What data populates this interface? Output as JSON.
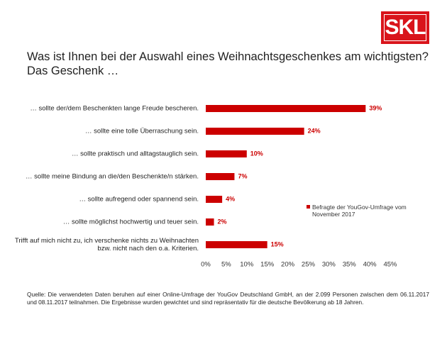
{
  "logo": "SKL",
  "chart_data": {
    "type": "hbar",
    "title": "Was ist Ihnen bei der Auswahl eines Weihnachtsgeschenkes am wichtigsten?",
    "subtitle": "Das Geschenk …",
    "categories": [
      "… sollte der/dem Beschenkten lange Freude bescheren.",
      "… sollte eine tolle Überraschung sein.",
      "… sollte praktisch und alltagstauglich sein.",
      "… sollte meine Bindung an die/den Beschenkte/n stärken.",
      "… sollte aufregend oder spannend sein.",
      "… sollte möglichst hochwertig und teuer sein.",
      "Trifft auf mich nicht zu, ich verschenke nichts zu Weihnachten bzw. nicht nach den o.a. Kriterien."
    ],
    "series": [
      {
        "name": "Befragte der YouGov-Umfrage vom November 2017",
        "color": "#cc0000",
        "values": [
          39,
          24,
          10,
          7,
          4,
          2,
          15
        ],
        "value_labels": [
          "39%",
          "24%",
          "10%",
          "7%",
          "4%",
          "2%",
          "15%"
        ]
      }
    ],
    "xlim": [
      0,
      45
    ],
    "xticks": [
      {
        "value": 0,
        "label": "0%"
      },
      {
        "value": 5,
        "label": "5%"
      },
      {
        "value": 10,
        "label": "10%"
      },
      {
        "value": 15,
        "label": "15%"
      },
      {
        "value": 20,
        "label": "20%"
      },
      {
        "value": 25,
        "label": "25%"
      },
      {
        "value": 30,
        "label": "30%"
      },
      {
        "value": 35,
        "label": "35%"
      },
      {
        "value": 40,
        "label": "40%"
      },
      {
        "value": 45,
        "label": "45%"
      }
    ],
    "legend": "right",
    "source": "Quelle: Die verwendeten Daten beruhen auf einer Online-Umfrage der YouGov Deutschland GmbH, an der 2.099 Personen zwischen dem 06.11.2017 und 08.11.2017 teilnahmen. Die Ergebnisse wurden gewichtet und sind repräsentativ für die deutsche Bevölkerung ab 18 Jahren."
  }
}
